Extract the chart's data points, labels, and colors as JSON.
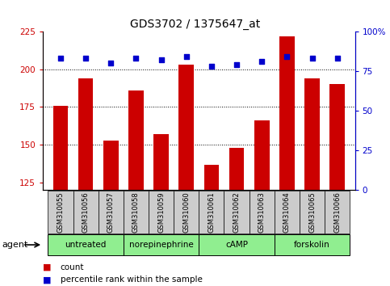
{
  "title": "GDS3702 / 1375647_at",
  "samples": [
    "GSM310055",
    "GSM310056",
    "GSM310057",
    "GSM310058",
    "GSM310059",
    "GSM310060",
    "GSM310061",
    "GSM310062",
    "GSM310063",
    "GSM310064",
    "GSM310065",
    "GSM310066"
  ],
  "count_values": [
    176,
    194,
    153,
    186,
    157,
    203,
    137,
    148,
    166,
    222,
    194,
    190
  ],
  "percentile_values": [
    83,
    83,
    80,
    83,
    82,
    84,
    78,
    79,
    81,
    84,
    83,
    83
  ],
  "ylim_left": [
    120,
    225
  ],
  "ylim_right": [
    0,
    100
  ],
  "yticks_left": [
    125,
    150,
    175,
    200,
    225
  ],
  "yticks_right": [
    0,
    25,
    50,
    75,
    100
  ],
  "ytick_right_labels": [
    "0",
    "25",
    "50",
    "75",
    "100%"
  ],
  "agent_groups": [
    {
      "label": "untreated",
      "start": 0,
      "end": 2
    },
    {
      "label": "norepinephrine",
      "start": 3,
      "end": 5
    },
    {
      "label": "cAMP",
      "start": 6,
      "end": 8
    },
    {
      "label": "forskolin",
      "start": 9,
      "end": 11
    }
  ],
  "bar_color": "#cc0000",
  "dot_color": "#0000cc",
  "agent_bg_color": "#90ee90",
  "sample_bg_color": "#cccccc",
  "grid_color": "#000000",
  "left_axis_color": "#cc0000",
  "right_axis_color": "#0000cc",
  "legend_count_color": "#cc0000",
  "legend_pct_color": "#0000cc",
  "agent_label": "agent",
  "legend": [
    "count",
    "percentile rank within the sample"
  ],
  "hgrid_values": [
    150,
    175,
    200
  ]
}
